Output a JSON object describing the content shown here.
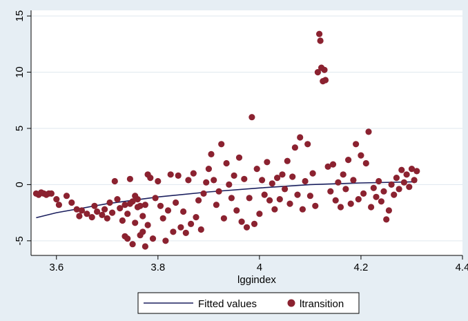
{
  "chart_data": {
    "type": "scatter",
    "title": "",
    "xlabel": "lggindex",
    "ylabel": "",
    "xlim": [
      3.55,
      4.4
    ],
    "ylim": [
      -6.3,
      15.5
    ],
    "x_ticks": [
      3.6,
      3.8,
      4,
      4.2,
      4.4
    ],
    "x_tick_labels": [
      "3.6",
      "3.8",
      "4",
      "4.2",
      "4.4"
    ],
    "y_ticks": [
      -5,
      0,
      5,
      10,
      15
    ],
    "y_tick_labels": [
      "-5",
      "0",
      "5",
      "10",
      "15"
    ],
    "grid": true,
    "legend_position": "bottom",
    "colors": {
      "background": "#e6eef4",
      "plot_background": "#ffffff",
      "fitted_line": "#1a1f5e",
      "points": "#8b2230"
    },
    "series": [
      {
        "name": "Fitted values",
        "type": "line",
        "x": [
          3.56,
          3.6,
          3.7,
          3.8,
          3.9,
          4.0,
          4.1,
          4.2,
          4.31
        ],
        "y": [
          -2.95,
          -2.5,
          -1.7,
          -1.1,
          -0.65,
          -0.3,
          0.0,
          0.15,
          0.25
        ]
      },
      {
        "name": "ltransition",
        "type": "scatter",
        "points": [
          [
            3.56,
            -0.8
          ],
          [
            3.565,
            -0.9
          ],
          [
            3.57,
            -0.7
          ],
          [
            3.575,
            -0.8
          ],
          [
            3.58,
            -0.9
          ],
          [
            3.585,
            -0.8
          ],
          [
            3.59,
            -0.8
          ],
          [
            3.6,
            -1.3
          ],
          [
            3.605,
            -1.8
          ],
          [
            3.62,
            -1.0
          ],
          [
            3.63,
            -1.6
          ],
          [
            3.64,
            -2.2
          ],
          [
            3.645,
            -2.8
          ],
          [
            3.65,
            -2.3
          ],
          [
            3.66,
            -2.6
          ],
          [
            3.67,
            -2.9
          ],
          [
            3.675,
            -1.9
          ],
          [
            3.68,
            -2.4
          ],
          [
            3.69,
            -2.7
          ],
          [
            3.695,
            -2.2
          ],
          [
            3.7,
            -3.0
          ],
          [
            3.705,
            -1.6
          ],
          [
            3.71,
            -2.5
          ],
          [
            3.715,
            0.3
          ],
          [
            3.72,
            -1.3
          ],
          [
            3.725,
            -2.1
          ],
          [
            3.73,
            -3.2
          ],
          [
            3.735,
            -1.8
          ],
          [
            3.74,
            -2.6
          ],
          [
            3.745,
            0.5
          ],
          [
            3.75,
            -1.5
          ],
          [
            3.755,
            -3.4
          ],
          [
            3.76,
            -2.0
          ],
          [
            3.765,
            -4.5
          ],
          [
            3.77,
            -2.8
          ],
          [
            3.775,
            -5.5
          ],
          [
            3.78,
            -3.6
          ],
          [
            3.785,
            0.6
          ],
          [
            3.79,
            -4.8
          ],
          [
            3.795,
            -1.2
          ],
          [
            3.8,
            0.3
          ],
          [
            3.805,
            -1.9
          ],
          [
            3.81,
            -3.0
          ],
          [
            3.815,
            -5.0
          ],
          [
            3.82,
            -2.3
          ],
          [
            3.825,
            0.9
          ],
          [
            3.83,
            -4.2
          ],
          [
            3.835,
            -1.6
          ],
          [
            3.84,
            0.8
          ],
          [
            3.845,
            -3.8
          ],
          [
            3.85,
            -2.4
          ],
          [
            3.855,
            -4.3
          ],
          [
            3.86,
            0.4
          ],
          [
            3.865,
            -3.5
          ],
          [
            3.87,
            1.0
          ],
          [
            3.875,
            -2.9
          ],
          [
            3.88,
            -1.4
          ],
          [
            3.885,
            -4.0
          ],
          [
            3.89,
            -0.8
          ],
          [
            3.895,
            0.2
          ],
          [
            3.735,
            -4.6
          ],
          [
            3.74,
            -4.8
          ],
          [
            3.745,
            -1.7
          ],
          [
            3.75,
            -5.3
          ],
          [
            3.755,
            -1.0
          ],
          [
            3.76,
            -1.3
          ],
          [
            3.765,
            -1.9
          ],
          [
            3.77,
            -4.2
          ],
          [
            3.775,
            -1.8
          ],
          [
            3.78,
            0.9
          ],
          [
            3.9,
            1.4
          ],
          [
            3.905,
            2.7
          ],
          [
            3.91,
            0.4
          ],
          [
            3.915,
            -1.8
          ],
          [
            3.92,
            -0.6
          ],
          [
            3.925,
            3.6
          ],
          [
            3.93,
            -3.0
          ],
          [
            3.935,
            1.9
          ],
          [
            3.94,
            0.0
          ],
          [
            3.945,
            -1.2
          ],
          [
            3.95,
            0.8
          ],
          [
            3.955,
            -2.3
          ],
          [
            3.96,
            2.4
          ],
          [
            3.965,
            -3.3
          ],
          [
            3.97,
            0.5
          ],
          [
            3.975,
            -3.8
          ],
          [
            3.98,
            -1.2
          ],
          [
            3.985,
            6.0
          ],
          [
            3.99,
            -3.5
          ],
          [
            3.995,
            1.4
          ],
          [
            4.0,
            -2.6
          ],
          [
            4.005,
            0.4
          ],
          [
            4.01,
            -0.9
          ],
          [
            4.015,
            2.0
          ],
          [
            4.02,
            -1.4
          ],
          [
            4.025,
            0.1
          ],
          [
            4.03,
            -2.2
          ],
          [
            4.035,
            0.6
          ],
          [
            4.04,
            -1.3
          ],
          [
            4.045,
            0.9
          ],
          [
            4.05,
            -0.4
          ],
          [
            4.055,
            2.1
          ],
          [
            4.06,
            -1.7
          ],
          [
            4.065,
            0.7
          ],
          [
            4.07,
            3.3
          ],
          [
            4.075,
            -0.9
          ],
          [
            4.08,
            4.2
          ],
          [
            4.085,
            -2.2
          ],
          [
            4.09,
            0.3
          ],
          [
            4.095,
            3.6
          ],
          [
            4.1,
            -1.0
          ],
          [
            4.105,
            1.0
          ],
          [
            4.11,
            -1.9
          ],
          [
            4.115,
            10.0
          ],
          [
            4.118,
            13.4
          ],
          [
            4.12,
            12.8
          ],
          [
            4.122,
            10.4
          ],
          [
            4.125,
            9.2
          ],
          [
            4.128,
            10.2
          ],
          [
            4.13,
            9.3
          ],
          [
            4.135,
            1.6
          ],
          [
            4.14,
            -0.6
          ],
          [
            4.145,
            1.8
          ],
          [
            4.15,
            -1.4
          ],
          [
            4.155,
            0.2
          ],
          [
            4.16,
            -2.0
          ],
          [
            4.165,
            0.9
          ],
          [
            4.17,
            -0.4
          ],
          [
            4.175,
            2.2
          ],
          [
            4.18,
            -1.7
          ],
          [
            4.185,
            0.4
          ],
          [
            4.19,
            3.6
          ],
          [
            4.195,
            -1.3
          ],
          [
            4.2,
            2.6
          ],
          [
            4.205,
            -0.8
          ],
          [
            4.21,
            1.9
          ],
          [
            4.215,
            4.7
          ],
          [
            4.22,
            -2.0
          ],
          [
            4.225,
            -0.3
          ],
          [
            4.23,
            -1.1
          ],
          [
            4.235,
            0.3
          ],
          [
            4.24,
            -1.5
          ],
          [
            4.245,
            -0.6
          ],
          [
            4.25,
            -3.1
          ],
          [
            4.255,
            -2.3
          ],
          [
            4.26,
            0.0
          ],
          [
            4.265,
            -0.9
          ],
          [
            4.27,
            0.6
          ],
          [
            4.275,
            -0.4
          ],
          [
            4.28,
            1.3
          ],
          [
            4.285,
            0.2
          ],
          [
            4.29,
            0.9
          ],
          [
            4.295,
            -0.2
          ],
          [
            4.3,
            1.4
          ],
          [
            4.305,
            0.4
          ],
          [
            4.31,
            1.2
          ]
        ]
      }
    ]
  }
}
